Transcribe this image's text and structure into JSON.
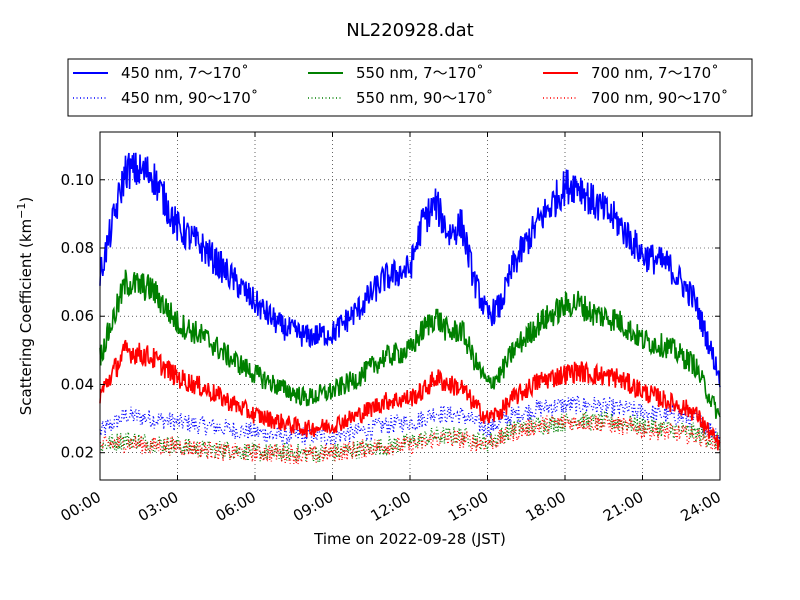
{
  "chart_data": {
    "type": "line",
    "title": "NL220928.dat",
    "xlabel": "Time on 2022-09-28 (JST)",
    "ylabel": "Scattering Coefficient (km",
    "ylabel_superscript": "−1",
    "ylabel_close": ")",
    "xlim": [
      "00:00",
      "24:00"
    ],
    "ylim": [
      0.012,
      0.114
    ],
    "grid": true,
    "legend_position": "top",
    "x_ticks": [
      "00:00",
      "03:00",
      "06:00",
      "09:00",
      "12:00",
      "15:00",
      "18:00",
      "21:00",
      "24:00"
    ],
    "y_ticks": [
      "0.02",
      "0.04",
      "0.06",
      "0.08",
      "0.10"
    ],
    "x_hours": [
      0,
      1,
      2,
      3,
      4,
      5,
      6,
      7,
      8,
      9,
      10,
      11,
      12,
      12.5,
      13,
      13.5,
      14,
      14.5,
      15,
      15.5,
      16,
      17,
      18,
      18.5,
      19,
      20,
      21,
      22,
      23,
      24
    ],
    "series": [
      {
        "name": "450 nm, 7～170˚",
        "color": "#0000ff",
        "style": "solid",
        "values": [
          0.072,
          0.103,
          0.102,
          0.086,
          0.08,
          0.072,
          0.064,
          0.057,
          0.054,
          0.055,
          0.062,
          0.071,
          0.074,
          0.088,
          0.093,
          0.084,
          0.087,
          0.07,
          0.06,
          0.063,
          0.075,
          0.088,
          0.098,
          0.099,
          0.094,
          0.088,
          0.078,
          0.075,
          0.065,
          0.042
        ]
      },
      {
        "name": "450 nm, 90～170˚",
        "color": "#0000ff",
        "style": "dotted",
        "values": [
          0.026,
          0.031,
          0.03,
          0.029,
          0.028,
          0.027,
          0.026,
          0.025,
          0.025,
          0.025,
          0.026,
          0.028,
          0.029,
          0.03,
          0.032,
          0.031,
          0.031,
          0.029,
          0.027,
          0.029,
          0.031,
          0.033,
          0.034,
          0.034,
          0.034,
          0.033,
          0.032,
          0.031,
          0.03,
          0.025
        ]
      },
      {
        "name": "550 nm, 7～170˚",
        "color": "#008000",
        "style": "solid",
        "values": [
          0.048,
          0.07,
          0.068,
          0.058,
          0.054,
          0.048,
          0.043,
          0.039,
          0.036,
          0.038,
          0.042,
          0.048,
          0.05,
          0.056,
          0.06,
          0.055,
          0.056,
          0.047,
          0.04,
          0.043,
          0.05,
          0.058,
          0.063,
          0.064,
          0.061,
          0.059,
          0.053,
          0.051,
          0.046,
          0.03
        ]
      },
      {
        "name": "550 nm, 90～170˚",
        "color": "#008000",
        "style": "dotted",
        "values": [
          0.022,
          0.024,
          0.023,
          0.022,
          0.021,
          0.021,
          0.02,
          0.02,
          0.02,
          0.02,
          0.021,
          0.022,
          0.023,
          0.024,
          0.025,
          0.025,
          0.025,
          0.024,
          0.023,
          0.025,
          0.027,
          0.028,
          0.029,
          0.03,
          0.029,
          0.029,
          0.028,
          0.027,
          0.026,
          0.023
        ]
      },
      {
        "name": "700 nm, 7～170˚",
        "color": "#ff0000",
        "style": "solid",
        "values": [
          0.037,
          0.05,
          0.048,
          0.042,
          0.039,
          0.035,
          0.031,
          0.029,
          0.027,
          0.028,
          0.031,
          0.035,
          0.036,
          0.038,
          0.042,
          0.04,
          0.039,
          0.034,
          0.03,
          0.032,
          0.036,
          0.041,
          0.043,
          0.044,
          0.043,
          0.042,
          0.038,
          0.035,
          0.032,
          0.022
        ]
      },
      {
        "name": "700 nm, 90～170˚",
        "color": "#ff0000",
        "style": "dotted",
        "values": [
          0.022,
          0.023,
          0.022,
          0.022,
          0.021,
          0.02,
          0.02,
          0.02,
          0.019,
          0.02,
          0.021,
          0.022,
          0.022,
          0.023,
          0.024,
          0.024,
          0.024,
          0.023,
          0.023,
          0.024,
          0.026,
          0.028,
          0.029,
          0.029,
          0.029,
          0.028,
          0.027,
          0.026,
          0.025,
          0.023
        ]
      }
    ]
  }
}
